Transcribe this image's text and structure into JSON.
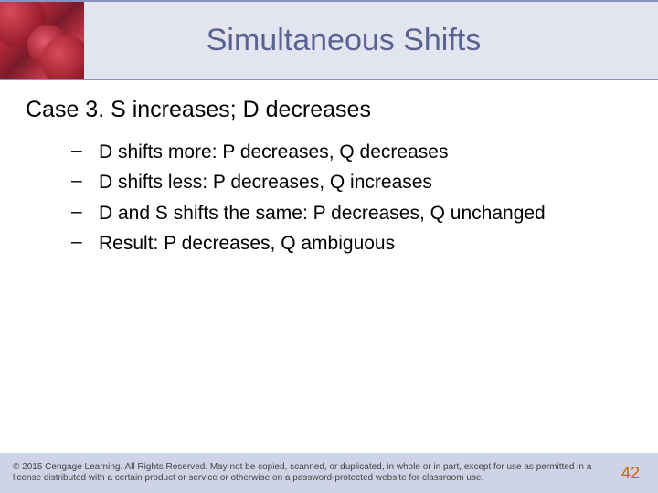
{
  "slide": {
    "title": "Simultaneous Shifts",
    "title_color": "#5a6290",
    "title_fontsize": 34,
    "header_bg": "#e2e4f0",
    "header_border": "#8a92c0"
  },
  "content": {
    "case_heading": "Case 3. S increases; D decreases",
    "case_fontsize": 25,
    "bullets": [
      "D shifts more: P decreases, Q decreases",
      "D shifts less: P decreases, Q increases",
      "D and S shifts the same: P decreases, Q unchanged",
      "Result: P decreases, Q ambiguous"
    ],
    "bullet_fontsize": 21,
    "bullet_marker": "–"
  },
  "footer": {
    "copyright": "© 2015 Cengage Learning. All Rights Reserved. May not be copied, scanned, or duplicated, in whole or in part, except for use as permitted in a license distributed with a certain product or service or otherwise on a password-protected website for classroom use.",
    "page_number": "42",
    "footer_bg": "#cfd3e6",
    "page_num_color": "#c26a00"
  }
}
